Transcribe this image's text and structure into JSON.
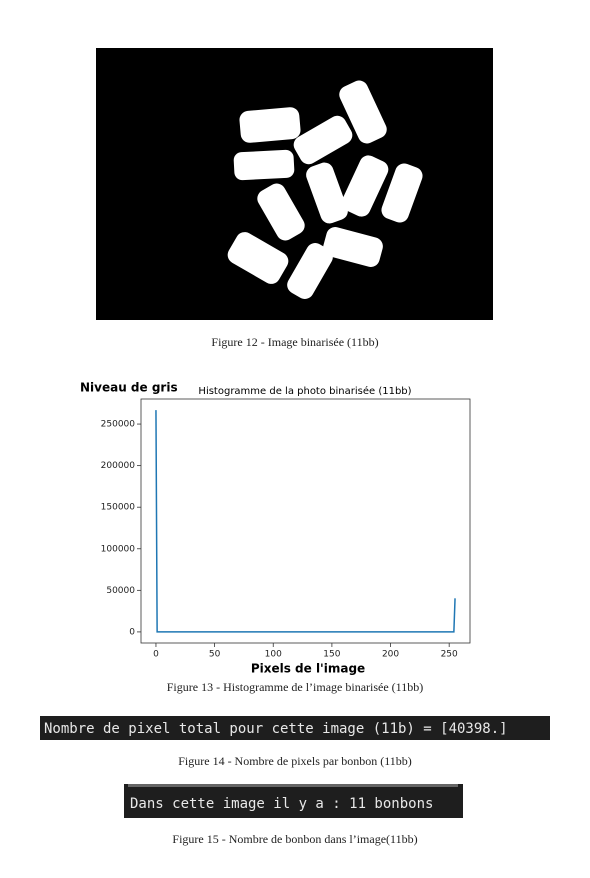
{
  "figure12": {
    "caption": "Figure 12 - Image binarisée (11bb)"
  },
  "chart_data": {
    "type": "line",
    "y_label": "Niveau de gris",
    "title": "Histogramme de la photo binarisée (11bb)",
    "x_label": "Pixels de l'image",
    "series": [
      {
        "color": "#1f77b4",
        "x": [
          0,
          1,
          254,
          255
        ],
        "values": [
          266802,
          0,
          0,
          40398
        ]
      }
    ],
    "xlim": [
      -12.75,
      267.75
    ],
    "ylim": [
      -13340,
      280142
    ],
    "xticks": [
      0,
      50,
      100,
      150,
      200,
      250
    ],
    "yticks": [
      0,
      50000,
      100000,
      150000,
      200000,
      250000
    ]
  },
  "figure13": {
    "caption": "Figure 13 - Histogramme de l’image binarisée (11bb)"
  },
  "figure14": {
    "console": "Nombre de pixel total pour cette image (11b) = [40398.]",
    "caption": "Figure 14 - Nombre de pixels par bonbon (11bb)"
  },
  "figure15": {
    "console": "Dans cette image il y a : 11 bonbons",
    "caption": "Figure 15 - Nombre de bonbon dans l’image(11bb)"
  }
}
